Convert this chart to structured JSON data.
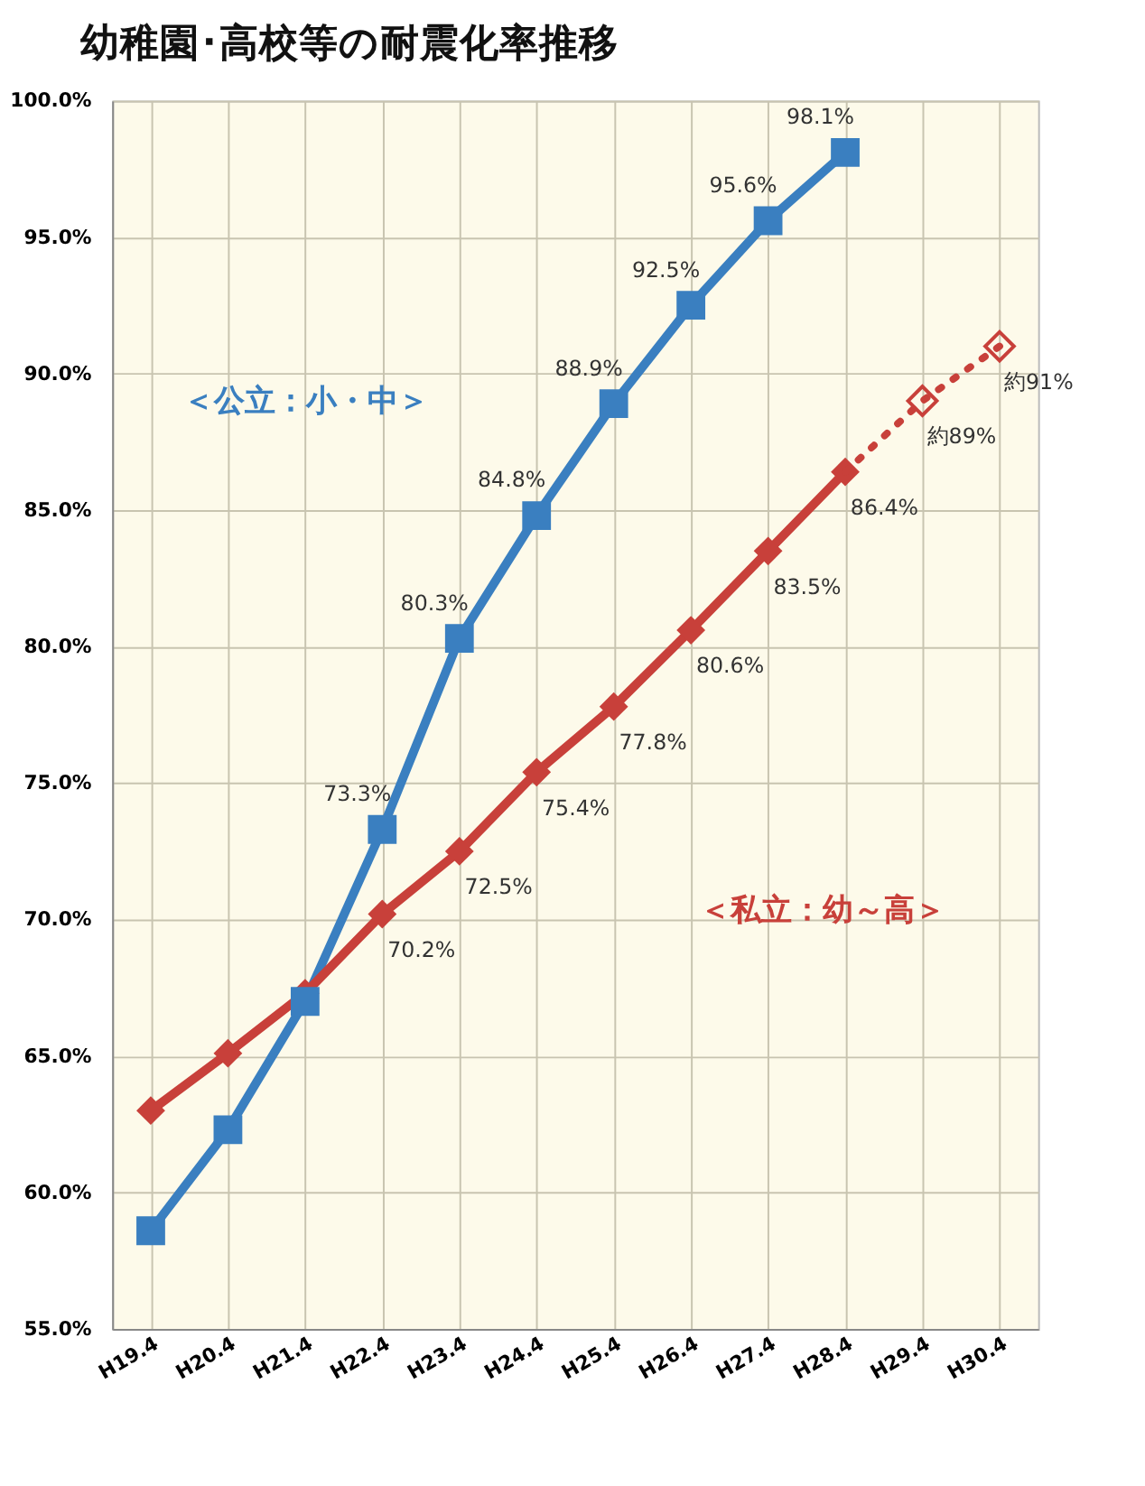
{
  "chart_data": {
    "type": "line",
    "title": "幼稚園･高校等の耐震化率推移",
    "categories": [
      "H19.4",
      "H20.4",
      "H21.4",
      "H22.4",
      "H23.4",
      "H24.4",
      "H25.4",
      "H26.4",
      "H27.4",
      "H28.4",
      "H29.4",
      "H30.4"
    ],
    "series": [
      {
        "name": "＜公立：小・中＞",
        "color": "#3a7fc0",
        "marker": "square",
        "line_style": "solid",
        "values": [
          58.6,
          62.3,
          67.0,
          73.3,
          80.3,
          84.8,
          88.9,
          92.5,
          95.6,
          98.1,
          null,
          null
        ],
        "value_labels": [
          null,
          null,
          null,
          "73.3%",
          "80.3%",
          "84.8%",
          "88.9%",
          "92.5%",
          "95.6%",
          "98.1%",
          null,
          null
        ]
      },
      {
        "name": "＜私立：幼～高＞",
        "color": "#c8403a",
        "marker": "diamond",
        "line_style": "solid",
        "values": [
          63.0,
          65.1,
          67.3,
          70.2,
          72.5,
          75.4,
          77.8,
          80.6,
          83.5,
          86.4,
          null,
          null
        ],
        "value_labels": [
          null,
          null,
          null,
          "70.2%",
          "72.5%",
          "75.4%",
          "77.8%",
          "80.6%",
          "83.5%",
          "86.4%",
          null,
          null
        ]
      },
      {
        "color": "#c8403a",
        "marker": "diamond",
        "line_style": "dotted",
        "values": [
          null,
          null,
          null,
          null,
          null,
          null,
          null,
          null,
          null,
          86.4,
          89,
          91
        ],
        "value_labels": [
          null,
          null,
          null,
          null,
          null,
          null,
          null,
          null,
          null,
          null,
          "約89%",
          "約91%"
        ]
      }
    ],
    "ylim": [
      55,
      100
    ],
    "yticks": [
      {
        "value": 55,
        "label": "55.0%"
      },
      {
        "value": 60,
        "label": "60.0%"
      },
      {
        "value": 65,
        "label": "65.0%"
      },
      {
        "value": 70,
        "label": "70.0%"
      },
      {
        "value": 75,
        "label": "75.0%"
      },
      {
        "value": 80,
        "label": "80.0%"
      },
      {
        "value": 85,
        "label": "85.0%"
      },
      {
        "value": 90,
        "label": "90.0%"
      },
      {
        "value": 95,
        "label": "95.0%"
      },
      {
        "value": 100,
        "label": "100.0%"
      }
    ],
    "grid": true,
    "legend": false
  }
}
